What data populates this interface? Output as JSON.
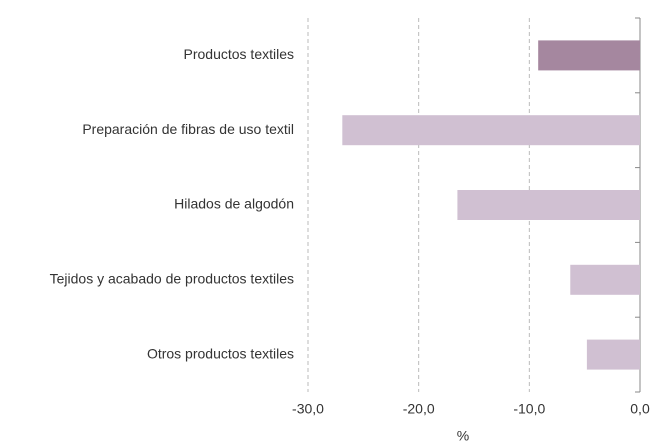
{
  "chart_data": {
    "type": "barh",
    "categories": [
      "Productos textiles",
      "Preparación de fibras de uso textil",
      "Hilados de algodón",
      "Tejidos y acabado de productos textiles",
      "Otros productos textiles"
    ],
    "values": [
      -9.2,
      -26.9,
      -16.5,
      -6.3,
      -4.8
    ],
    "colors": [
      "#a5879f",
      "#d0c0d2",
      "#d0c0d2",
      "#d0c0d2",
      "#d0c0d2"
    ],
    "xlabel": "%",
    "xlim": [
      -30,
      0
    ],
    "xticks": [
      {
        "value": -30,
        "label": "-30,0"
      },
      {
        "value": -20,
        "label": "-20,0"
      },
      {
        "value": -10,
        "label": "-10,0"
      },
      {
        "value": 0,
        "label": "0,0"
      }
    ],
    "grid": true
  }
}
